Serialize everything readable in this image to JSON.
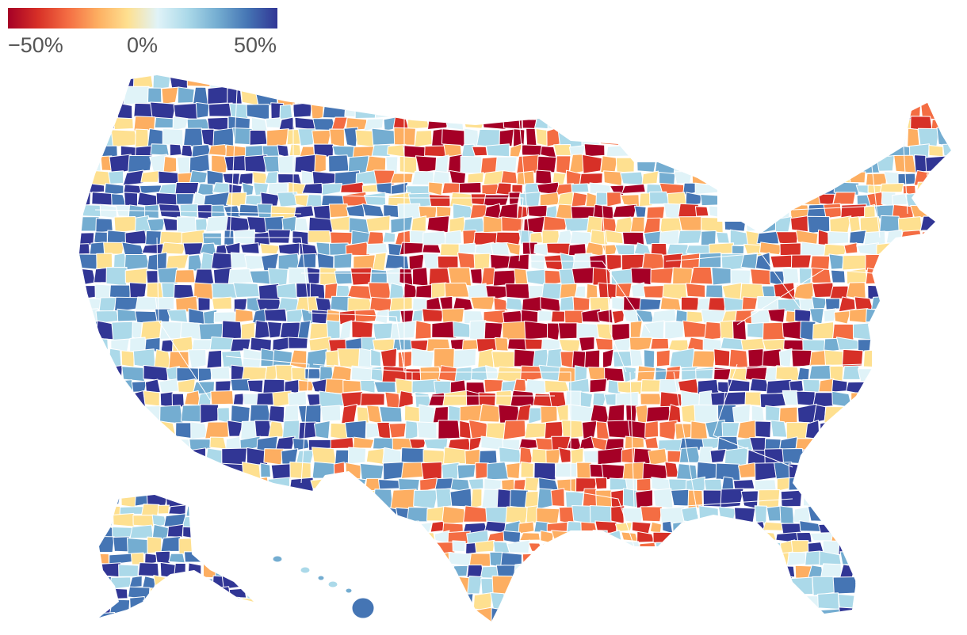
{
  "legend": {
    "ticks": [
      "−50%",
      "0%",
      "50%"
    ],
    "colors": [
      "#a50026",
      "#d73027",
      "#f46d43",
      "#fdae61",
      "#fee090",
      "#e0f3f8",
      "#abd9e9",
      "#74add1",
      "#4575b4",
      "#313695"
    ]
  },
  "map": {
    "no_data_color": "#e0e0e0",
    "region_names": [
      "contiguous-us",
      "alaska",
      "hawaii"
    ]
  }
}
